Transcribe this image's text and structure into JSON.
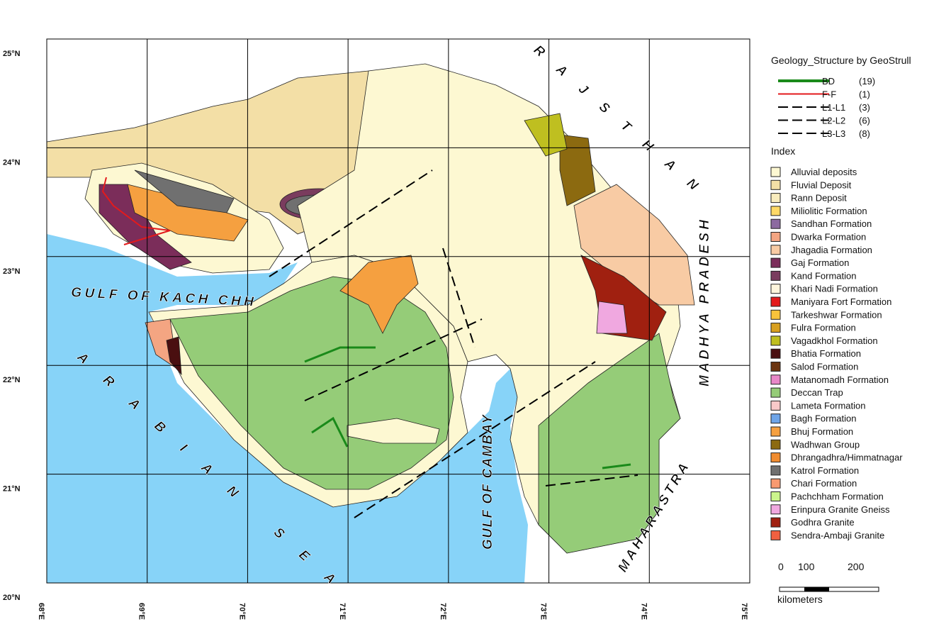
{
  "map": {
    "lat_labels": [
      "25°N",
      "24°N",
      "23°N",
      "22°N",
      "21°N",
      "20°N"
    ],
    "lon_labels": [
      "68°E",
      "69°E",
      "70°E",
      "71°E",
      "72°E",
      "73°E",
      "74°E",
      "75°E"
    ],
    "place_labels": [
      "GULF OF KACH CHH",
      "ARABIAN SEA",
      "RAJSTHAN",
      "MADHYA PRADESH",
      "MAHARASTRA",
      "GULF OF CAMBAY"
    ]
  },
  "legend": {
    "title": "Geology_Structure by GeoStrull",
    "structures": [
      {
        "name": "BD",
        "count": "(19)",
        "color": "#1a8a1a"
      },
      {
        "name": "F-F",
        "count": "(1)",
        "color": "#e31a1c"
      },
      {
        "name": "L1-L1",
        "count": "(3)",
        "color": "#000000"
      },
      {
        "name": "L2-L2",
        "count": "(6)",
        "color": "#000000"
      },
      {
        "name": "L3-L3",
        "count": "(8)",
        "color": "#000000"
      }
    ],
    "index_title": "Index",
    "units": [
      {
        "name": "Alluvial deposits",
        "color": "#fdf8d2"
      },
      {
        "name": "Fluvial Deposit",
        "color": "#f3dfa6"
      },
      {
        "name": "Rann Deposit",
        "color": "#f8ecbd"
      },
      {
        "name": "Miliolitic Formation",
        "color": "#ffd966"
      },
      {
        "name": "Sandhan Formation",
        "color": "#8c6aa0"
      },
      {
        "name": "Dwarka Formation",
        "color": "#f4a582"
      },
      {
        "name": "Jhagadia Formation",
        "color": "#f8cba4"
      },
      {
        "name": "Gaj Formation",
        "color": "#7b2d5a"
      },
      {
        "name": "Kand Formation",
        "color": "#7a3c5e"
      },
      {
        "name": "Khari Nadi Formation",
        "color": "#fdf5dc"
      },
      {
        "name": "Maniyara Fort Formation",
        "color": "#e31a1c"
      },
      {
        "name": "Tarkeshwar Formation",
        "color": "#f7c33b"
      },
      {
        "name": "Fulra Formation",
        "color": "#d8a020"
      },
      {
        "name": "Vagadkhol Formation",
        "color": "#bfbf20"
      },
      {
        "name": "Bhatia Formation",
        "color": "#4a0f10"
      },
      {
        "name": "Salod Formation",
        "color": "#6b3410"
      },
      {
        "name": "Matanomadh Formation",
        "color": "#e887c8"
      },
      {
        "name": "Deccan Trap",
        "color": "#95cc78"
      },
      {
        "name": "Lameta Formation",
        "color": "#f9c9c9"
      },
      {
        "name": "Bagh Formation",
        "color": "#6ea5e8"
      },
      {
        "name": "Bhuj Formation",
        "color": "#f5a040"
      },
      {
        "name": "Wadhwan Group",
        "color": "#8c6a10"
      },
      {
        "name": "Dhrangadhra/Himmatnagar",
        "color": "#f08c30"
      },
      {
        "name": "Katrol Formation",
        "color": "#707070"
      },
      {
        "name": "Chari Formation",
        "color": "#f89a70"
      },
      {
        "name": "Pachchham Formation",
        "color": "#ccf58c"
      },
      {
        "name": "Erinpura Granite Gneiss",
        "color": "#f0a8e0"
      },
      {
        "name": "Godhra Granite",
        "color": "#a02010"
      },
      {
        "name": "Sendra-Ambaji Granite",
        "color": "#f06040"
      }
    ]
  },
  "scale": {
    "labels": [
      "0",
      "100",
      "200"
    ],
    "unit": "kilometers"
  }
}
